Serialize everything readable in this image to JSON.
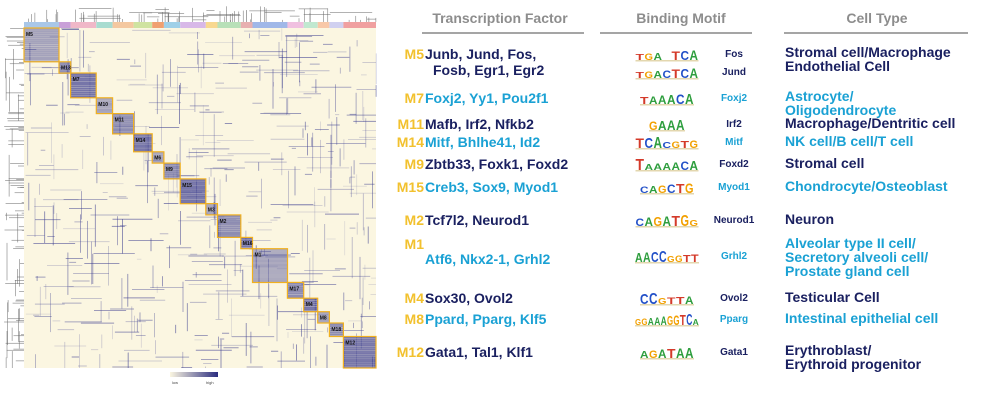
{
  "headers": {
    "tf": "Transcription Factor",
    "motif": "Binding Motif",
    "cell": "Cell Type"
  },
  "legend": {
    "low": "low",
    "high": "high"
  },
  "colors": {
    "module": "#f2c12e",
    "navy": "#1a2060",
    "cyan": "#1aa1d4",
    "heat": "#3a3c8f",
    "bg": "#fbf6e1",
    "box": "#f0b020"
  },
  "modules": [
    {
      "id": "M5",
      "tf": [
        "Junb, Jund, Fos,",
        "Fosb, Egr1, Egr2"
      ],
      "motifs": [
        {
          "seq": "TGA.TCA",
          "name": "Fos"
        },
        {
          "seq": "TGACTCA",
          "name": "Jund"
        }
      ],
      "cell": [
        "Stromal cell/Macrophage",
        "Endothelial Cell"
      ],
      "tone": "navy"
    },
    {
      "id": "M7",
      "tf": [
        "Foxj2, Yy1, Pou2f1"
      ],
      "motifs": [
        {
          "seq": "TAAACA",
          "name": "Foxj2"
        }
      ],
      "cell": [
        "Astrocyte/",
        "Oligodendrocyte"
      ],
      "tone": "cyan"
    },
    {
      "id": "M11",
      "tf": [
        "Mafb, Irf2, Nfkb2"
      ],
      "motifs": [
        {
          "seq": "GAAA",
          "name": "Irf2"
        }
      ],
      "cell": [
        "Macrophage/Dentritic cell"
      ],
      "tone": "navy"
    },
    {
      "id": "M14",
      "tf": [
        "Mitf, Bhlhe41, Id2"
      ],
      "motifs": [
        {
          "seq": "TCACGTG",
          "name": "Mitf"
        }
      ],
      "cell": [
        "NK cell/B cell/T cell"
      ],
      "tone": "cyan"
    },
    {
      "id": "M9",
      "tf": [
        "Zbtb33, Foxk1, Foxd2"
      ],
      "motifs": [
        {
          "seq": "TAAAACA",
          "name": "Foxd2"
        }
      ],
      "cell": [
        "Stromal cell"
      ],
      "tone": "navy"
    },
    {
      "id": "M15",
      "tf": [
        "Creb3, Sox9, Myod1"
      ],
      "motifs": [
        {
          "seq": "CAGCTG",
          "name": "Myod1"
        }
      ],
      "cell": [
        "Chondrocyte/Osteoblast"
      ],
      "tone": "cyan"
    },
    {
      "id": "M2",
      "tf": [
        "Tcf7l2, Neurod1"
      ],
      "motifs": [
        {
          "seq": "CAGATGG",
          "name": "Neurod1"
        }
      ],
      "cell": [
        "Neuron"
      ],
      "tone": "navy"
    },
    {
      "id": "M1",
      "tf": [
        "Atf6, Nkx2-1, Grhl2"
      ],
      "motifs": [
        {
          "seq": "AACCGGTT",
          "name": "Grhl2"
        }
      ],
      "cell": [
        "Alveolar type II cell/",
        "Secretory alveoli cell/",
        "Prostate gland cell"
      ],
      "tone": "cyan"
    },
    {
      "id": "M4",
      "tf": [
        "Sox30, Ovol2"
      ],
      "motifs": [
        {
          "seq": "CCGTTA",
          "name": "Ovol2"
        }
      ],
      "cell": [
        "Testicular Cell"
      ],
      "tone": "navy"
    },
    {
      "id": "M8",
      "tf": [
        "Ppard, Pparg, Klf5"
      ],
      "motifs": [
        {
          "seq": "GGAAAGGTCA",
          "name": "Pparg"
        }
      ],
      "cell": [
        "Intestinal epithelial cell"
      ],
      "tone": "cyan"
    },
    {
      "id": "M12",
      "tf": [
        "Gata1, Tal1, Klf1"
      ],
      "motifs": [
        {
          "seq": "AGATAA",
          "name": "Gata1"
        }
      ],
      "cell": [
        "Erythroblast/",
        "Erythroid progenitor"
      ],
      "tone": "navy"
    }
  ],
  "heatmap_modules": [
    "M5",
    "M13",
    "M7",
    "M10",
    "M11",
    "M14",
    "M6",
    "M9",
    "M15",
    "M3",
    "M2",
    "M16",
    "M1",
    "M17",
    "M4",
    "M8",
    "M18",
    "M12"
  ]
}
